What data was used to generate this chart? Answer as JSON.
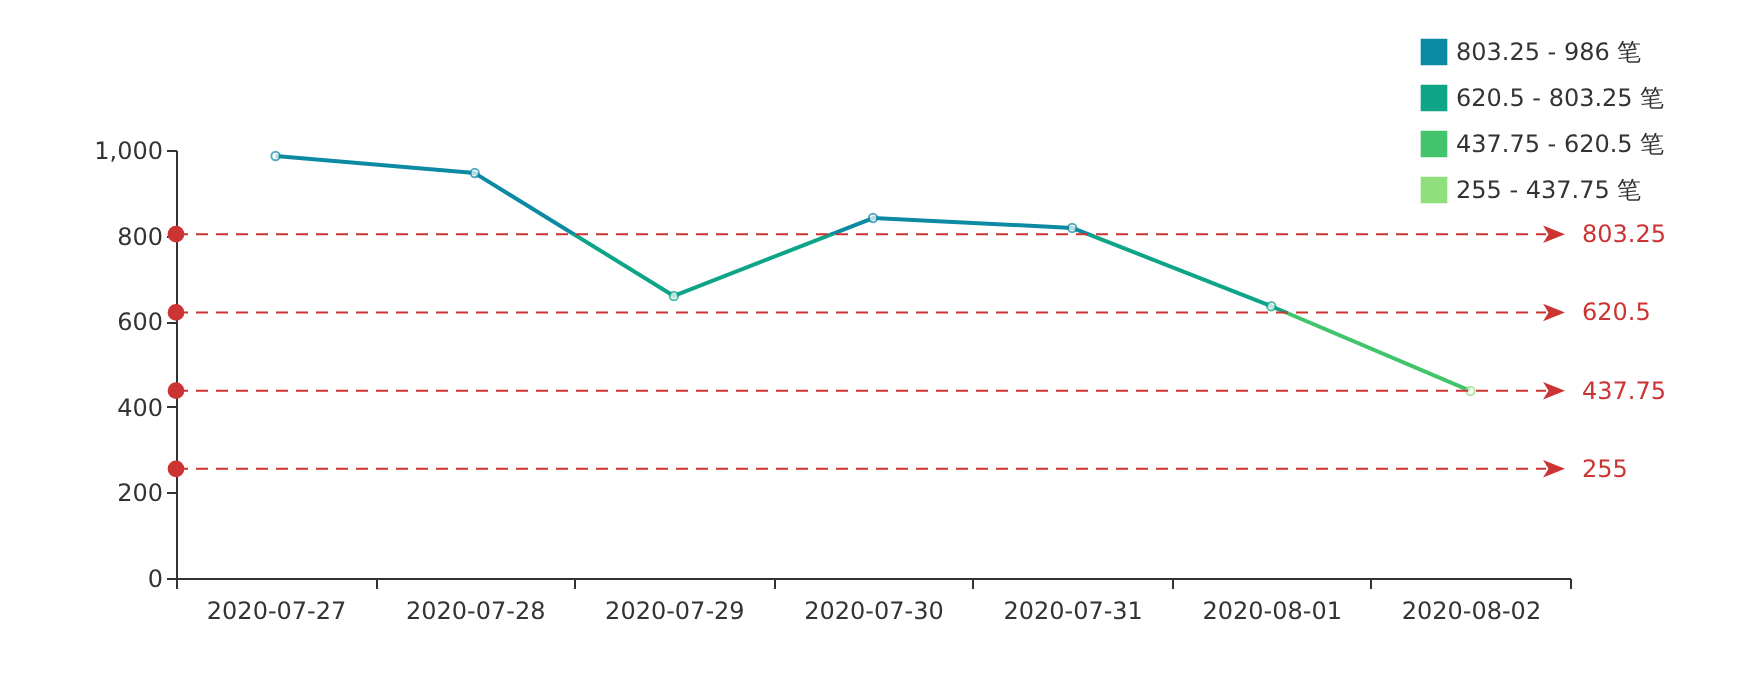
{
  "chart_data": {
    "type": "line",
    "categories": [
      "2020-07-27",
      "2020-07-28",
      "2020-07-29",
      "2020-07-30",
      "2020-07-31",
      "2020-08-01",
      "2020-08-02"
    ],
    "series": [
      {
        "values": [
          986,
          946,
          659,
          841,
          818,
          635,
          437
        ]
      },
      {
        "name": "803.25 - 986 笔",
        "color": "#0c8aa3",
        "values": [
          null,
          null,
          null,
          null,
          null,
          null,
          null
        ]
      },
      {
        "name": "620.5 - 803.25 笔",
        "color": "#0ea487",
        "values": [
          null,
          null,
          null,
          null,
          null,
          null,
          null
        ]
      },
      {
        "name": "437.75 - 620.5 笔",
        "color": "#41c46c",
        "values": [
          null,
          null,
          null,
          null,
          null,
          null,
          null
        ]
      },
      {
        "name": "255 - 437.75 笔",
        "color": "#8fe07c",
        "values": [
          null,
          null,
          null,
          null,
          null,
          null,
          null
        ]
      }
    ],
    "ylim": [
      0,
      1000
    ],
    "yticks": [
      0,
      200,
      400,
      600,
      800,
      {
        "value": 1000,
        "label": "1,000"
      }
    ],
    "ref_lines": [
      {
        "axis": "y",
        "value": 803.25,
        "label": "803.25",
        "color": "#cc3333",
        "line_style": "dashed"
      },
      {
        "axis": "y",
        "value": 620.5,
        "label": "620.5",
        "color": "#cc3333",
        "line_style": "dashed"
      },
      {
        "axis": "y",
        "value": 437.75,
        "label": "437.75",
        "color": "#cc3333",
        "line_style": "dashed"
      },
      {
        "axis": "y",
        "value": 255,
        "label": "255",
        "color": "#cc3333",
        "line_style": "dashed"
      }
    ],
    "grid": false,
    "legend": "top right",
    "marker": "circle",
    "line_style": "solid"
  }
}
